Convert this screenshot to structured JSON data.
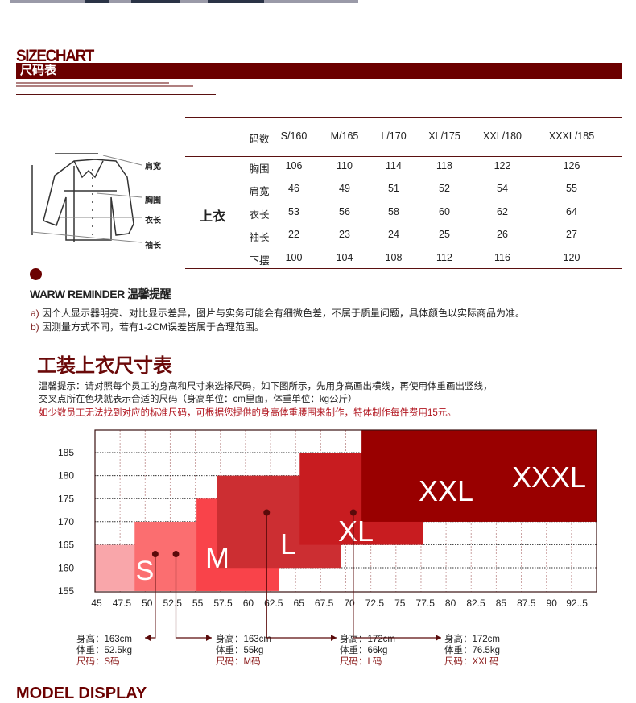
{
  "header": {
    "title_en": "SIZECHART",
    "title_cn": "尺码表"
  },
  "size_table": {
    "category": "上衣",
    "header": [
      "码数",
      "S/160",
      "M/165",
      "L/170",
      "XL/175",
      "XXL/180",
      "XXXL/185"
    ],
    "rows": [
      [
        "胸围",
        "106",
        "110",
        "114",
        "118",
        "122",
        "126"
      ],
      [
        "肩宽",
        "46",
        "49",
        "51",
        "52",
        "54",
        "55"
      ],
      [
        "衣长",
        "53",
        "56",
        "58",
        "60",
        "62",
        "64"
      ],
      [
        "袖长",
        "22",
        "23",
        "24",
        "25",
        "26",
        "27"
      ],
      [
        "下摆",
        "100",
        "104",
        "108",
        "112",
        "116",
        "120"
      ]
    ],
    "diagram_labels": [
      "肩宽",
      "胸围",
      "衣长",
      "袖长"
    ]
  },
  "reminder": {
    "title": "WARW REMINDER 温馨提醒",
    "items": [
      {
        "marker": "a)",
        "text": "因个人显示器明亮、对比显示差异，图片与实务可能会有细微色差，不属于质量问题，具体颜色以实际商品为准。"
      },
      {
        "marker": "b)",
        "text": "因测量方式不同，若有1-2CM误差皆属于合理范围。"
      }
    ]
  },
  "guide": {
    "title": "工装上衣尺寸表",
    "lines": [
      "温馨提示：请对照每个员工的身高和尺寸来选择尺码，如下图所示，先用身高画出横线，再使用体重画出竖线，",
      "交叉点所在色块就表示合适的尺码（身高单位：cm里面，体重单位：kg公斤）"
    ],
    "note": "如少数员工无法找到对应的标准尺码，可根据您提供的身高体重腰围来制作，特体制作每件费用15元。"
  },
  "chart_data": {
    "type": "area",
    "xlabel": "",
    "ylabel": "",
    "x_ticks": [
      "45",
      "47.5",
      "50",
      "52.5",
      "55",
      "57.5",
      "60",
      "62.5",
      "65",
      "67.5",
      "70",
      "72.5",
      "75",
      "77.5",
      "80",
      "82.5",
      "85",
      "87.5",
      "90",
      "92..5"
    ],
    "y_ticks": [
      185,
      180,
      175,
      170,
      165,
      160,
      155
    ],
    "grid": true,
    "blocks": [
      {
        "name": "S",
        "x": [
          45,
          55
        ],
        "y": [
          155,
          165
        ],
        "color": "#f9a6aa"
      },
      {
        "name": "M",
        "x": [
          50,
          60
        ],
        "y": [
          155,
          170
        ],
        "color": "#fb6e70"
      },
      {
        "name": "L",
        "x": [
          57.5,
          67.5
        ],
        "y": [
          155,
          175
        ],
        "color": "#f9434a"
      },
      {
        "name": "XL",
        "x": [
          60,
          75
        ],
        "y": [
          160,
          180
        ],
        "color": "#cc2e32"
      },
      {
        "name": "XXL",
        "x": [
          70,
          85
        ],
        "y": [
          165,
          185
        ],
        "color": "#c81c20"
      },
      {
        "name": "XXXL",
        "x": [
          77.5,
          106
        ],
        "y": [
          170,
          190
        ],
        "color": "#990000"
      }
    ],
    "examples": [
      {
        "height": 163,
        "weight": 52.5,
        "size": "S",
        "lines": [
          "身高：163cm",
          "体重：52.5kg",
          "尺码：S码"
        ]
      },
      {
        "height": 163,
        "weight": 55,
        "size": "M",
        "lines": [
          "身高：163cm",
          "体重：55kg",
          "尺码：M码"
        ]
      },
      {
        "height": 172,
        "weight": 66,
        "size": "L",
        "lines": [
          "身高：172cm",
          "体重：66kg",
          "尺码：L码"
        ]
      },
      {
        "height": 172,
        "weight": 76.5,
        "size": "XXL",
        "lines": [
          "身高：172cm",
          "体重：76.5kg",
          "尺码：XXL码"
        ]
      }
    ]
  },
  "footer": {
    "next_section": "MODEL DISPLAY"
  }
}
